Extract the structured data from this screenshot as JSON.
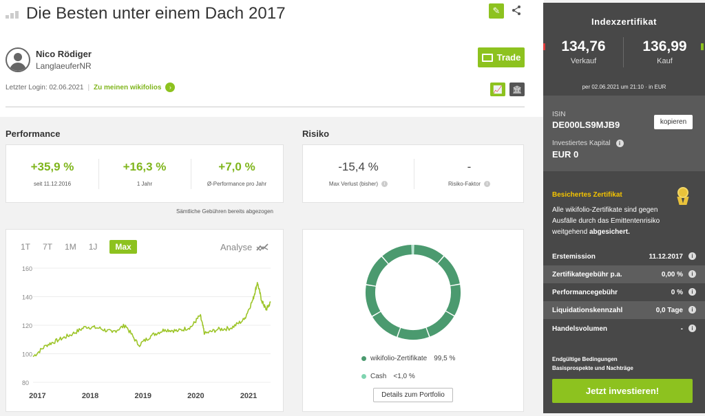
{
  "header": {
    "title": "Die Besten unter einem Dach 2017",
    "user_name": "Nico Rödiger",
    "user_nick": "LanglaeuferNR",
    "trade_label": "Trade",
    "last_login": "Letzter Login: 02.06.2021",
    "wikifolios_link": "Zu meinen wikifolios"
  },
  "performance": {
    "heading": "Performance",
    "metrics": [
      {
        "value": "+35,9 %",
        "label": "seit 11.12.2016"
      },
      {
        "value": "+16,3 %",
        "label": "1 Jahr"
      },
      {
        "value": "+7,0 %",
        "label": "Ø-Performance pro Jahr"
      }
    ],
    "fees_note": "Sämtliche Gebühren bereits abgezogen"
  },
  "risk": {
    "heading": "Risiko",
    "metrics": [
      {
        "value": "-15,4 %",
        "label": "Max Verlust (bisher)"
      },
      {
        "value": "-",
        "label": "Risiko-Faktor"
      }
    ]
  },
  "chart": {
    "tabs": [
      "1T",
      "7T",
      "1M",
      "1J",
      "Max"
    ],
    "active_tab": "Max",
    "analyse_label": "Analyse"
  },
  "chart_data": [
    {
      "type": "line",
      "ylim": [
        80,
        160
      ],
      "yticks": [
        80,
        100,
        120,
        140,
        160
      ],
      "xticks": [
        "2017",
        "2018",
        "2019",
        "2020",
        "2021"
      ],
      "color": "#9dc529",
      "x": [
        "2016-12",
        "2017-03",
        "2017-06",
        "2017-09",
        "2017-12",
        "2018-03",
        "2018-06",
        "2018-09",
        "2018-12",
        "2019-03",
        "2019-06",
        "2019-09",
        "2019-12",
        "2020-02",
        "2020-03",
        "2020-06",
        "2020-09",
        "2020-12",
        "2021-02",
        "2021-03",
        "2021-04",
        "2021-05",
        "2021-06"
      ],
      "values": [
        98,
        106,
        110,
        114,
        119,
        118,
        115,
        120,
        106,
        113,
        117,
        116,
        119,
        127,
        114,
        117,
        118,
        124,
        138,
        150,
        137,
        131,
        136
      ]
    },
    {
      "type": "pie",
      "categories": [
        "wikifolio-Zertifikate",
        "Cash"
      ],
      "values": [
        99.5,
        0.5
      ],
      "colors": [
        "#4b9a6f",
        "#7fd4b0"
      ]
    }
  ],
  "portfolio": {
    "legend": [
      {
        "name": "wikifolio-Zertifikate",
        "value": "99,5 %"
      },
      {
        "name": "Cash",
        "value": "<1,0 %"
      }
    ],
    "details_label": "Details zum Portfolio"
  },
  "sidebar": {
    "title": "Indexzertifikat",
    "sell_value": "134,76",
    "sell_label": "Verkauf",
    "buy_value": "136,99",
    "buy_label": "Kauf",
    "timestamp": "per 02.06.2021 um 21:10 · in EUR",
    "isin_label": "ISIN",
    "isin": "DE000LS9MJB9",
    "copy_label": "kopieren",
    "capital_label": "Investiertes Kapital",
    "capital_value": "EUR 0",
    "secure_title": "Besichertes Zertifikat",
    "secure_text_1": "Alle wikifolio-Zertifikate sind gegen Ausfälle durch das Emittentenrisiko weitgehend ",
    "secure_text_2": "abgesichert.",
    "rows": [
      {
        "key": "Erstemission",
        "value": "11.12.2017"
      },
      {
        "key": "Zertifikategebühr p.a.",
        "value": "0,00 %"
      },
      {
        "key": "Performancegebühr",
        "value": "0 %"
      },
      {
        "key": "Liquidationskennzahl",
        "value": "0,0 Tage"
      },
      {
        "key": "Handelsvolumen",
        "value": "-"
      }
    ],
    "link_1": "Endgültige Bedingungen",
    "link_2": "Basisprospekte und Nachträge",
    "invest_label": "Jetzt investieren!"
  }
}
